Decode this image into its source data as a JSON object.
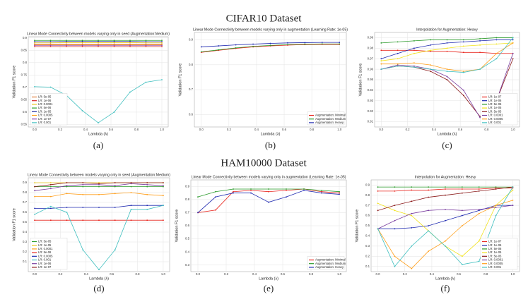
{
  "headings": [
    "CIFAR10 Dataset",
    "HAM10000 Dataset"
  ],
  "chart_data": [
    {
      "type": "line",
      "caption": "(a)",
      "title": "Linear Mode Connectivity between models varying only in seed (Augmentation:Medium)",
      "xlabel": "Lambda (λ)",
      "ylabel": "Validation F1 score",
      "grid": true,
      "legend": "lower left",
      "x": [
        0,
        0.125,
        0.25,
        0.375,
        0.5,
        0.625,
        0.75,
        0.875,
        1
      ],
      "xlim": [
        -0.05,
        1.05
      ],
      "xticks": [
        {
          "value": 0,
          "label": "0.0"
        },
        0.2,
        0.4,
        0.6,
        0.8,
        {
          "value": 1,
          "label": "1.0"
        }
      ],
      "ylim": [
        0.54,
        0.905
      ],
      "yticks": [
        0.55,
        0.6,
        0.65,
        0.7,
        0.75,
        0.8,
        0.85,
        0.9
      ],
      "series": [
        {
          "name": "LR: 5e-05",
          "color": "#e07b39",
          "values": [
            0.875,
            0.875,
            0.875,
            0.875,
            0.875,
            0.875,
            0.875,
            0.875,
            0.875
          ]
        },
        {
          "name": "LR: 1e-06",
          "color": "#d62728",
          "values": [
            0.865,
            0.865,
            0.865,
            0.865,
            0.865,
            0.865,
            0.865,
            0.865,
            0.865
          ]
        },
        {
          "name": "LR: 0.0001",
          "color": "#e8c61a",
          "values": [
            0.88,
            0.88,
            0.881,
            0.881,
            0.881,
            0.881,
            0.881,
            0.88,
            0.88
          ]
        },
        {
          "name": "LR: 5e-06",
          "color": "#2ca02c",
          "values": [
            0.89,
            0.89,
            0.89,
            0.89,
            0.89,
            0.89,
            0.89,
            0.89,
            0.89
          ]
        },
        {
          "name": "LR: 1e-05",
          "color": "#1f2a9f",
          "values": [
            0.885,
            0.885,
            0.886,
            0.886,
            0.886,
            0.886,
            0.886,
            0.885,
            0.885
          ]
        },
        {
          "name": "LR: 0.0005",
          "color": "#ff9f1c",
          "values": [
            0.872,
            0.872,
            0.872,
            0.872,
            0.872,
            0.872,
            0.872,
            0.872,
            0.872
          ]
        },
        {
          "name": "LR: 1e-07",
          "color": "#8e44ad",
          "values": [
            0.87,
            0.87,
            0.87,
            0.87,
            0.87,
            0.87,
            0.87,
            0.87,
            0.87
          ]
        },
        {
          "name": "LR: 0.001",
          "color": "#3fbfbf",
          "values": [
            0.703,
            0.701,
            0.668,
            0.606,
            0.557,
            0.6,
            0.681,
            0.721,
            0.731
          ]
        }
      ]
    },
    {
      "type": "line",
      "caption": "(b)",
      "title": "Linear Mode Connectivity between models varying only in augmentation (Learning Rate: 1e-05)",
      "xlabel": "Lambda (λ)",
      "ylabel": "Validation F1 score",
      "grid": true,
      "legend": "lower right",
      "x": [
        0,
        0.125,
        0.25,
        0.375,
        0.5,
        0.625,
        0.75,
        0.875,
        1
      ],
      "xlim": [
        -0.05,
        1.05
      ],
      "xticks": [
        {
          "value": 0,
          "label": "0.0"
        },
        0.2,
        0.4,
        0.6,
        0.8,
        {
          "value": 1,
          "label": "1.0"
        }
      ],
      "ylim": [
        0.55,
        0.93
      ],
      "yticks": [
        0.6,
        0.7,
        0.8,
        0.9
      ],
      "series": [
        {
          "name": "Augmentation: Minimal",
          "color": "#e8261e",
          "values": [
            0.85,
            0.858,
            0.866,
            0.872,
            0.876,
            0.879,
            0.881,
            0.882,
            0.882
          ]
        },
        {
          "name": "Augmentation: Medium",
          "color": "#2a9a2a",
          "values": [
            0.852,
            0.86,
            0.868,
            0.874,
            0.878,
            0.881,
            0.883,
            0.884,
            0.884
          ]
        },
        {
          "name": "Augmentation: Heavy",
          "color": "#1f2ab0",
          "values": [
            0.872,
            0.876,
            0.88,
            0.883,
            0.886,
            0.888,
            0.889,
            0.89,
            0.89
          ]
        }
      ]
    },
    {
      "type": "line",
      "caption": "(c)",
      "title": "Interpolation for Augmentation: Heavy",
      "xlabel": "Lambda (λ)",
      "ylabel": "Validation F1 score",
      "grid": true,
      "legend": "lower right",
      "x": [
        0,
        0.125,
        0.25,
        0.375,
        0.5,
        0.625,
        0.75,
        0.875,
        1
      ],
      "xlim": [
        -0.05,
        1.05
      ],
      "xticks": [
        {
          "value": 0,
          "label": "0.0"
        },
        0.2,
        0.4,
        0.6,
        0.8,
        {
          "value": 1,
          "label": "1.0"
        }
      ],
      "ylim": [
        0.905,
        0.995
      ],
      "yticks": [
        0.91,
        0.92,
        0.93,
        0.94,
        0.95,
        0.96,
        0.97,
        0.98,
        0.99
      ],
      "series": [
        {
          "name": "LR: 1e-07",
          "color": "#e8261e",
          "values": [
            0.978,
            0.978,
            0.978,
            0.977,
            0.977,
            0.976,
            0.976,
            0.975,
            0.975
          ]
        },
        {
          "name": "LR: 1e-06",
          "color": "#1f2ab0",
          "values": [
            0.97,
            0.975,
            0.98,
            0.983,
            0.985,
            0.986,
            0.987,
            0.988,
            0.988
          ]
        },
        {
          "name": "LR: 5e-06",
          "color": "#2a9a2a",
          "values": [
            0.985,
            0.986,
            0.987,
            0.988,
            0.988,
            0.988,
            0.989,
            0.99,
            0.99
          ]
        },
        {
          "name": "LR: 1e-05",
          "color": "#f2e21a",
          "values": [
            0.968,
            0.97,
            0.975,
            0.978,
            0.98,
            0.982,
            0.983,
            0.984,
            0.985
          ]
        },
        {
          "name": "LR: 5e-05",
          "color": "#8b1a1a",
          "values": [
            0.96,
            0.963,
            0.962,
            0.958,
            0.95,
            0.935,
            0.915,
            0.93,
            0.97
          ]
        },
        {
          "name": "LR: 0.0001",
          "color": "#7b3fa0",
          "values": [
            0.96,
            0.964,
            0.963,
            0.96,
            0.953,
            0.94,
            0.914,
            0.93,
            0.975
          ]
        },
        {
          "name": "LR: 0.0005",
          "color": "#ff9f1c",
          "values": [
            0.965,
            0.965,
            0.966,
            0.964,
            0.96,
            0.958,
            0.96,
            0.975,
            0.985
          ]
        },
        {
          "name": "LR: 0.001",
          "color": "#3fbfbf",
          "values": [
            0.96,
            0.963,
            0.962,
            0.96,
            0.958,
            0.957,
            0.96,
            0.97,
            0.99
          ]
        }
      ]
    },
    {
      "type": "line",
      "caption": "(d)",
      "title": "Linear Mode Connectivity between models varying only in seed (Augmentation:Medium)",
      "xlabel": "Lambda (λ)",
      "ylabel": "Validation F1 score",
      "grid": true,
      "legend": "lower left",
      "x": [
        0,
        0.125,
        0.25,
        0.375,
        0.5,
        0.625,
        0.75,
        0.875,
        1
      ],
      "xlim": [
        -0.05,
        1.05
      ],
      "xticks": [
        {
          "value": 0,
          "label": "0.0"
        },
        0.2,
        0.4,
        0.6,
        0.8,
        {
          "value": 1,
          "label": "1.0"
        }
      ],
      "ylim": [
        0,
        0.95
      ],
      "yticks": [
        0.1,
        0.2,
        0.3,
        0.4,
        0.5,
        0.6,
        0.7,
        0.8,
        0.9
      ],
      "series": [
        {
          "name": "LR: 5e-05",
          "color": "#2a9a2a",
          "values": [
            0.86,
            0.86,
            0.86,
            0.86,
            0.86,
            0.86,
            0.86,
            0.86,
            0.86
          ]
        },
        {
          "name": "LR: 1e-05",
          "color": "#e8c61a",
          "values": [
            0.9,
            0.9,
            0.9,
            0.9,
            0.9,
            0.9,
            0.9,
            0.9,
            0.9
          ]
        },
        {
          "name": "LR: 0.0001",
          "color": "#ff9f1c",
          "values": [
            0.76,
            0.76,
            0.79,
            0.78,
            0.78,
            0.79,
            0.8,
            0.78,
            0.77
          ]
        },
        {
          "name": "LR: 5e-06",
          "color": "#e8261e",
          "values": [
            0.52,
            0.52,
            0.52,
            0.52,
            0.52,
            0.52,
            0.52,
            0.52,
            0.52
          ]
        },
        {
          "name": "LR: 0.0005",
          "color": "#1f2ab0",
          "values": [
            0.64,
            0.64,
            0.65,
            0.65,
            0.65,
            0.65,
            0.67,
            0.67,
            0.67
          ]
        },
        {
          "name": "LR: 0.001",
          "color": "#3fbfbf",
          "values": [
            0.58,
            0.66,
            0.6,
            0.22,
            0.02,
            0.22,
            0.63,
            0.63,
            0.67
          ]
        },
        {
          "name": "LR: 1e-06",
          "color": "#7b3fa0",
          "values": [
            0.82,
            0.84,
            0.87,
            0.88,
            0.88,
            0.87,
            0.89,
            0.88,
            0.87
          ]
        },
        {
          "name": "LR: 1e-07",
          "color": "#8b1a1a",
          "values": [
            0.86,
            0.88,
            0.9,
            0.9,
            0.89,
            0.9,
            0.9,
            0.9,
            0.9
          ]
        }
      ]
    },
    {
      "type": "line",
      "caption": "(e)",
      "title": "Linear Mode Connectivity between models varying only in augmentation (Learning Rate: 1e-05)",
      "xlabel": "Lambda (λ)",
      "ylabel": "Validation F1 score",
      "grid": true,
      "legend": "lower right",
      "x": [
        0,
        0.125,
        0.25,
        0.375,
        0.5,
        0.625,
        0.75,
        0.875,
        1
      ],
      "xlim": [
        -0.05,
        1.05
      ],
      "xticks": [
        {
          "value": 0,
          "label": "0.0"
        },
        0.2,
        0.4,
        0.6,
        0.8,
        {
          "value": 1,
          "label": "1.0"
        }
      ],
      "ylim": [
        0.25,
        0.95
      ],
      "yticks": [
        0.3,
        0.4,
        0.5,
        0.6,
        0.7,
        0.8,
        0.9
      ],
      "series": [
        {
          "name": "Augmentation: Minimal",
          "color": "#e8261e",
          "values": [
            0.7,
            0.72,
            0.86,
            0.87,
            0.86,
            0.87,
            0.88,
            0.86,
            0.85
          ]
        },
        {
          "name": "Augmentation: Medium",
          "color": "#2a9a2a",
          "values": [
            0.82,
            0.86,
            0.88,
            0.88,
            0.88,
            0.88,
            0.88,
            0.87,
            0.86
          ]
        },
        {
          "name": "Augmentation: Heavy",
          "color": "#1f2ab0",
          "values": [
            0.7,
            0.82,
            0.85,
            0.85,
            0.78,
            0.82,
            0.87,
            0.85,
            0.84
          ]
        }
      ]
    },
    {
      "type": "line",
      "caption": "(f)",
      "title": "Interpolation for Augmentation: Heavy",
      "xlabel": "Lambda (λ)",
      "ylabel": "Validation F1 score",
      "grid": true,
      "legend": "lower right",
      "x": [
        0,
        0.125,
        0.25,
        0.375,
        0.5,
        0.625,
        0.75,
        0.875,
        1
      ],
      "xlim": [
        -0.05,
        1.05
      ],
      "xticks": [
        {
          "value": 0,
          "label": "0.0"
        },
        0.2,
        0.4,
        0.6,
        0.8,
        {
          "value": 1,
          "label": "1.0"
        }
      ],
      "ylim": [
        0.05,
        0.95
      ],
      "yticks": [
        0.1,
        0.2,
        0.3,
        0.4,
        0.5,
        0.6,
        0.7,
        0.8,
        0.9
      ],
      "series": [
        {
          "name": "LR: 1e-07",
          "color": "#e8261e",
          "values": [
            0.84,
            0.84,
            0.85,
            0.85,
            0.86,
            0.86,
            0.86,
            0.87,
            0.87
          ]
        },
        {
          "name": "LR: 1e-06",
          "color": "#1f2ab0",
          "values": [
            0.47,
            0.47,
            0.48,
            0.5,
            0.55,
            0.6,
            0.65,
            0.7,
            0.7
          ]
        },
        {
          "name": "LR: 5e-06",
          "color": "#2a9a2a",
          "values": [
            0.88,
            0.88,
            0.88,
            0.88,
            0.88,
            0.88,
            0.88,
            0.88,
            0.88
          ]
        },
        {
          "name": "LR: 1e-05",
          "color": "#f2e21a",
          "values": [
            0.72,
            0.65,
            0.6,
            0.45,
            0.3,
            0.2,
            0.35,
            0.7,
            0.85
          ]
        },
        {
          "name": "LR: 5e-05",
          "color": "#8b1a1a",
          "values": [
            0.65,
            0.7,
            0.74,
            0.78,
            0.8,
            0.82,
            0.84,
            0.86,
            0.88
          ]
        },
        {
          "name": "LR: 0.0001",
          "color": "#7b3fa0",
          "values": [
            0.47,
            0.55,
            0.62,
            0.65,
            0.66,
            0.65,
            0.66,
            0.68,
            0.7
          ]
        },
        {
          "name": "LR: 0.0005",
          "color": "#ff9f1c",
          "values": [
            0.47,
            0.2,
            0.08,
            0.25,
            0.35,
            0.5,
            0.62,
            0.7,
            0.75
          ]
        },
        {
          "name": "LR: 0.001",
          "color": "#3fbfbf",
          "values": [
            0.47,
            0.1,
            0.3,
            0.45,
            0.3,
            0.12,
            0.15,
            0.6,
            0.88
          ]
        }
      ]
    }
  ]
}
